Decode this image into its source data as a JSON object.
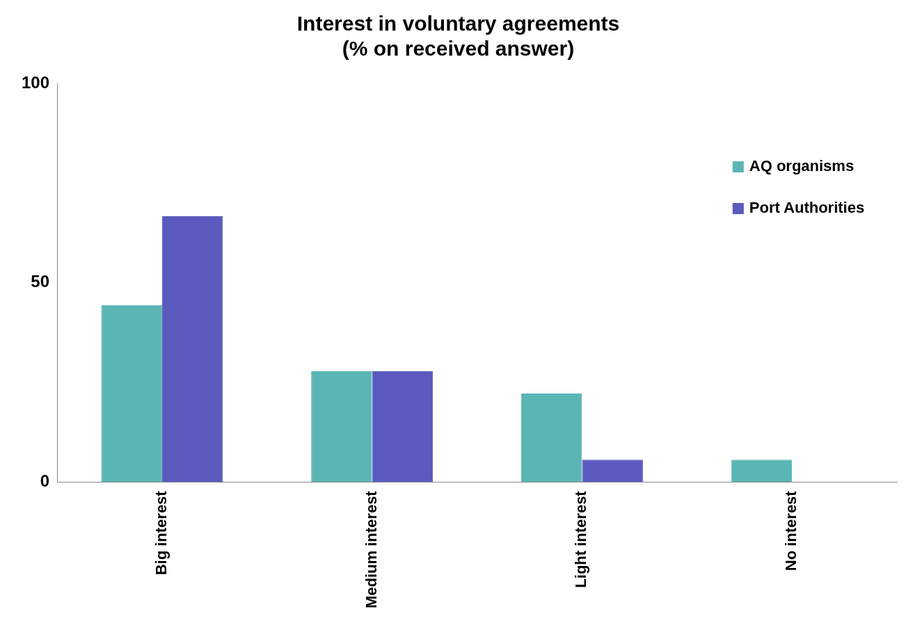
{
  "chart_data": {
    "type": "bar",
    "title": [
      "Interest in voluntary agreements",
      "(% on received answer)"
    ],
    "categories": [
      "Big interest",
      "Medium interest",
      "Light interest",
      "No interest"
    ],
    "series": [
      {
        "name": "AQ organisms",
        "color": "#5bb5b5",
        "values": [
          44.4,
          27.8,
          22.2,
          5.6
        ]
      },
      {
        "name": "Port Authorities",
        "color": "#5a5abf",
        "values": [
          66.7,
          27.8,
          5.6,
          0
        ]
      }
    ],
    "ylim": [
      0,
      100
    ],
    "yticks": [
      0,
      50,
      100
    ],
    "grid": false,
    "legend": "top right"
  }
}
